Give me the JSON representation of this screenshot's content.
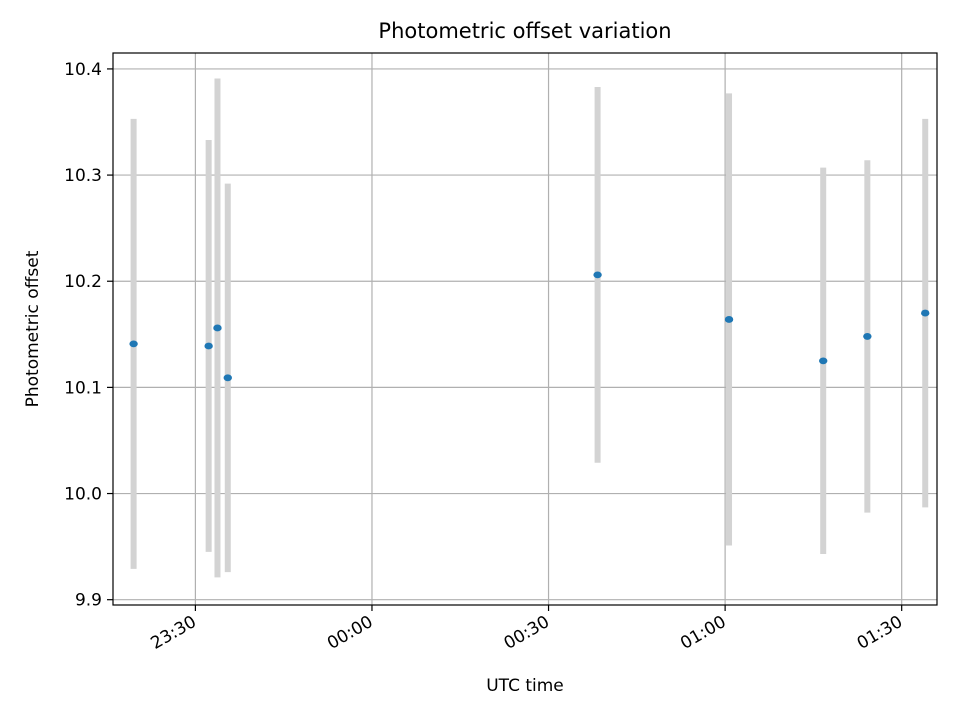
{
  "chart_data": {
    "type": "scatter",
    "title": "Photometric offset variation",
    "xlabel": "UTC time",
    "ylabel": "Photometric offset",
    "xlim": [
      "23:16",
      "01:36"
    ],
    "ylim": [
      9.895,
      10.415
    ],
    "grid": true,
    "x_ticks": [
      "23:30",
      "00:00",
      "00:30",
      "01:00",
      "01:30"
    ],
    "y_ticks": [
      "9.9",
      "10.0",
      "10.1",
      "10.2",
      "10.3",
      "10.4"
    ],
    "points": [
      {
        "x": "23:19:30",
        "y": 10.141,
        "ylow": 9.929,
        "yhigh": 10.353
      },
      {
        "x": "23:32:15",
        "y": 10.139,
        "ylow": 9.945,
        "yhigh": 10.333
      },
      {
        "x": "23:33:45",
        "y": 10.156,
        "ylow": 9.921,
        "yhigh": 10.391
      },
      {
        "x": "23:35:30",
        "y": 10.109,
        "ylow": 9.926,
        "yhigh": 10.292
      },
      {
        "x": "00:38:20",
        "y": 10.206,
        "ylow": 10.029,
        "yhigh": 10.383
      },
      {
        "x": "01:00:40",
        "y": 10.164,
        "ylow": 9.951,
        "yhigh": 10.377
      },
      {
        "x": "01:16:40",
        "y": 10.125,
        "ylow": 9.943,
        "yhigh": 10.307
      },
      {
        "x": "01:24:10",
        "y": 10.148,
        "ylow": 9.982,
        "yhigh": 10.314
      },
      {
        "x": "01:34:00",
        "y": 10.17,
        "ylow": 9.987,
        "yhigh": 10.353
      }
    ],
    "colors": {
      "point": "#1f77b4",
      "errorbar": "#d3d3d3",
      "grid": "#b0b0b0"
    }
  }
}
